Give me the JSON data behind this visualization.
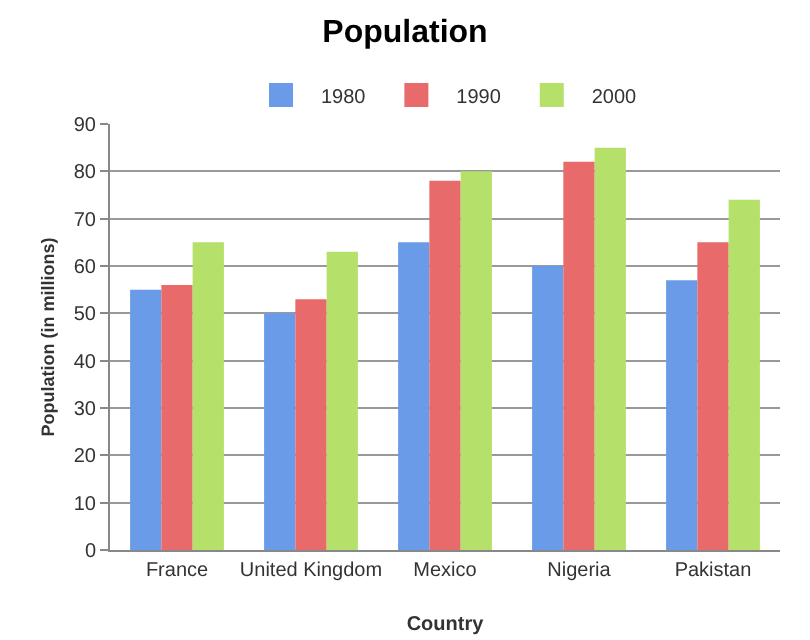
{
  "chart_data": {
    "type": "bar",
    "title": "Population",
    "xlabel": "Country",
    "ylabel": "Population (in millions)",
    "categories": [
      "France",
      "United Kingdom",
      "Mexico",
      "Nigeria",
      "Pakistan"
    ],
    "series": [
      {
        "name": "1980",
        "color": "#6a9be8",
        "values": [
          55,
          50,
          65,
          60,
          57
        ]
      },
      {
        "name": "1990",
        "color": "#e86a6a",
        "values": [
          56,
          53,
          78,
          82,
          65
        ]
      },
      {
        "name": "2000",
        "color": "#b5e06a",
        "values": [
          65,
          63,
          80,
          85,
          74
        ]
      }
    ],
    "ylim": [
      0,
      90
    ],
    "yticks": [
      0,
      10,
      20,
      30,
      40,
      50,
      60,
      70,
      80,
      90
    ],
    "grid": "y",
    "legend": "top"
  }
}
